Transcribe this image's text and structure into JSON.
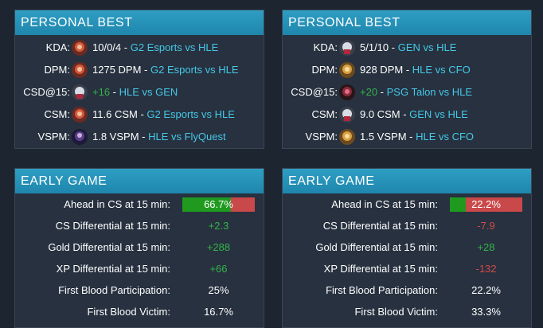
{
  "colors": {
    "header": "#2196bd",
    "link": "#46c8e8",
    "positive": "#34b34a",
    "negative": "#d24a4a",
    "bar_win": "#1f9a1f",
    "bar_loss": "#c9484a"
  },
  "left": {
    "pb": {
      "title": "PERSONAL BEST",
      "rows": [
        {
          "label": "KDA:",
          "icon": "champion-red-icon",
          "value": "10/0/4",
          "sep": " - ",
          "link": "G2 Esports vs HLE"
        },
        {
          "label": "DPM:",
          "icon": "champion-red-icon",
          "value": "1275 DPM",
          "sep": " - ",
          "link": "G2 Esports vs HLE"
        },
        {
          "label": "CSD@15:",
          "icon": "champion-white-icon",
          "value": "+16",
          "sep": " - ",
          "link": "HLE vs GEN"
        },
        {
          "label": "CSM:",
          "icon": "champion-red-icon",
          "value": "11.6 CSM",
          "sep": " - ",
          "link": "G2 Esports vs HLE"
        },
        {
          "label": "VSPM:",
          "icon": "champion-purple-icon",
          "value": "1.8 VSPM",
          "sep": " - ",
          "link": "HLE vs FlyQuest"
        }
      ]
    },
    "eg": {
      "title": "EARLY GAME",
      "rows": [
        {
          "label": "Ahead in CS at 15 min:",
          "value": "66.7%",
          "fraction": 0.667
        },
        {
          "label": "CS Differential at 15 min:",
          "value": "+2.3"
        },
        {
          "label": "Gold Differential at 15 min:",
          "value": "+288"
        },
        {
          "label": "XP Differential at 15 min:",
          "value": "+66"
        },
        {
          "label": "First Blood Participation:",
          "value": "25%"
        },
        {
          "label": "First Blood Victim:",
          "value": "16.7%"
        }
      ]
    }
  },
  "right": {
    "pb": {
      "title": "PERSONAL BEST",
      "rows": [
        {
          "label": "KDA:",
          "icon": "champion-white-icon",
          "value": "5/1/10",
          "sep": " - ",
          "link": "GEN vs HLE"
        },
        {
          "label": "DPM:",
          "icon": "champion-gold-icon",
          "value": "928 DPM",
          "sep": " - ",
          "link": "HLE vs CFO"
        },
        {
          "label": "CSD@15:",
          "icon": "champion-dark-red-icon",
          "value": "+20",
          "sep": " - ",
          "link": "PSG Talon vs HLE"
        },
        {
          "label": "CSM:",
          "icon": "champion-white-icon",
          "value": "9.0 CSM",
          "sep": " - ",
          "link": "GEN vs HLE"
        },
        {
          "label": "VSPM:",
          "icon": "champion-gold-icon",
          "value": "1.5 VSPM",
          "sep": " - ",
          "link": "HLE vs CFO"
        }
      ]
    },
    "eg": {
      "title": "EARLY GAME",
      "rows": [
        {
          "label": "Ahead in CS at 15 min:",
          "value": "22.2%",
          "fraction": 0.222
        },
        {
          "label": "CS Differential at 15 min:",
          "value": "-7.9"
        },
        {
          "label": "Gold Differential at 15 min:",
          "value": "+28"
        },
        {
          "label": "XP Differential at 15 min:",
          "value": "-132"
        },
        {
          "label": "First Blood Participation:",
          "value": "22.2%"
        },
        {
          "label": "First Blood Victim:",
          "value": "33.3%"
        }
      ]
    }
  }
}
